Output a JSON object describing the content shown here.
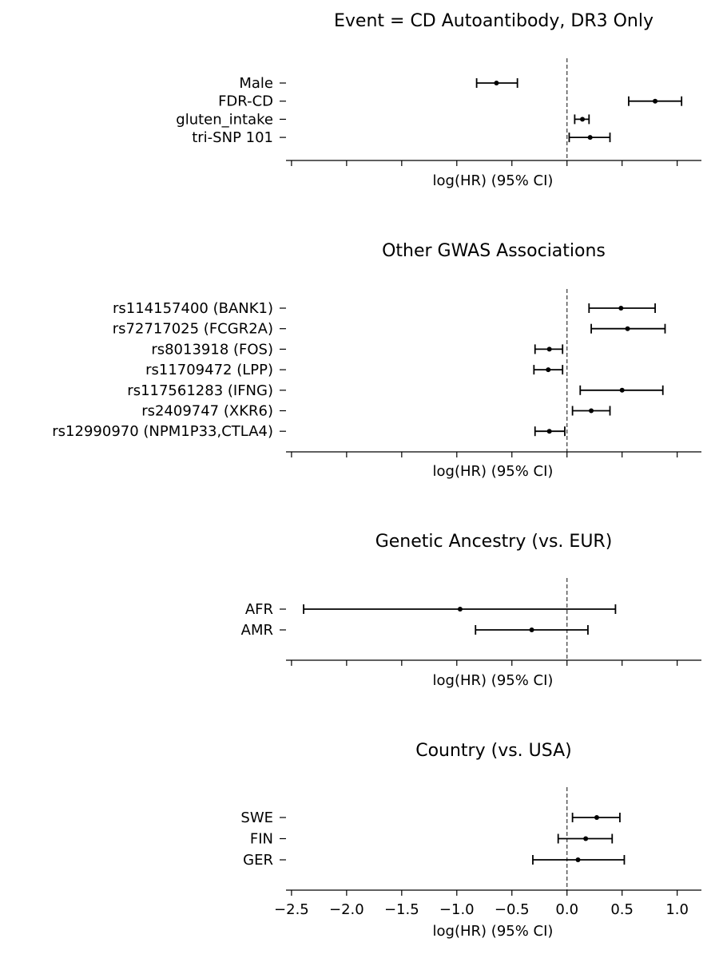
{
  "chart_data": [
    {
      "type": "forest",
      "title": "Event = CD Autoantibody, DR3 Only",
      "xlabel": "log(HR) (95% CI)",
      "xlim": [
        -2.55,
        1.22
      ],
      "show_tick_labels": false,
      "reference_line": 0,
      "rows": [
        {
          "label": "Male",
          "est": -0.64,
          "lo": -0.82,
          "hi": -0.45
        },
        {
          "label": "FDR-CD",
          "est": 0.8,
          "lo": 0.56,
          "hi": 1.04
        },
        {
          "label": "gluten_intake",
          "est": 0.14,
          "lo": 0.07,
          "hi": 0.2
        },
        {
          "label": "tri-SNP 101",
          "est": 0.21,
          "lo": 0.02,
          "hi": 0.39
        }
      ]
    },
    {
      "type": "forest",
      "title": "Other GWAS Associations",
      "xlabel": "log(HR) (95% CI)",
      "xlim": [
        -2.55,
        1.22
      ],
      "show_tick_labels": false,
      "reference_line": 0,
      "rows": [
        {
          "label": "rs114157400 (BANK1)",
          "est": 0.49,
          "lo": 0.2,
          "hi": 0.8
        },
        {
          "label": "rs72717025 (FCGR2A)",
          "est": 0.55,
          "lo": 0.22,
          "hi": 0.89
        },
        {
          "label": "rs8013918 (FOS)",
          "est": -0.16,
          "lo": -0.29,
          "hi": -0.04
        },
        {
          "label": "rs11709472 (LPP)",
          "est": -0.17,
          "lo": -0.3,
          "hi": -0.04
        },
        {
          "label": "rs117561283 (IFNG)",
          "est": 0.5,
          "lo": 0.12,
          "hi": 0.87
        },
        {
          "label": "rs2409747 (XKR6)",
          "est": 0.22,
          "lo": 0.05,
          "hi": 0.39
        },
        {
          "label": "rs12990970 (NPM1P33,CTLA4)",
          "est": -0.16,
          "lo": -0.29,
          "hi": -0.02
        }
      ]
    },
    {
      "type": "forest",
      "title": "Genetic Ancestry (vs. EUR)",
      "xlabel": "log(HR) (95% CI)",
      "xlim": [
        -2.55,
        1.22
      ],
      "show_tick_labels": false,
      "reference_line": 0,
      "rows": [
        {
          "label": "AFR",
          "est": -0.97,
          "lo": -2.39,
          "hi": 0.44
        },
        {
          "label": "AMR",
          "est": -0.32,
          "lo": -0.83,
          "hi": 0.19
        }
      ]
    },
    {
      "type": "forest",
      "title": "Country (vs. USA)",
      "xlabel": "log(HR) (95% CI)",
      "xlim": [
        -2.55,
        1.22
      ],
      "show_tick_labels": true,
      "reference_line": 0,
      "rows": [
        {
          "label": "SWE",
          "est": 0.27,
          "lo": 0.05,
          "hi": 0.48
        },
        {
          "label": "FIN",
          "est": 0.17,
          "lo": -0.08,
          "hi": 0.41
        },
        {
          "label": "GER",
          "est": 0.1,
          "lo": -0.31,
          "hi": 0.52
        }
      ]
    }
  ],
  "x_ticks": [
    -2.5,
    -2.0,
    -1.5,
    -1.0,
    -0.5,
    0.0,
    0.5,
    1.0
  ],
  "x_tick_labels": [
    "−2.5",
    "−2.0",
    "−1.5",
    "−1.0",
    "−0.5",
    "0.0",
    "0.5",
    "1.0"
  ],
  "colors": {
    "marks": "#000000",
    "reference_line": "#444444",
    "axis": "#000000"
  }
}
